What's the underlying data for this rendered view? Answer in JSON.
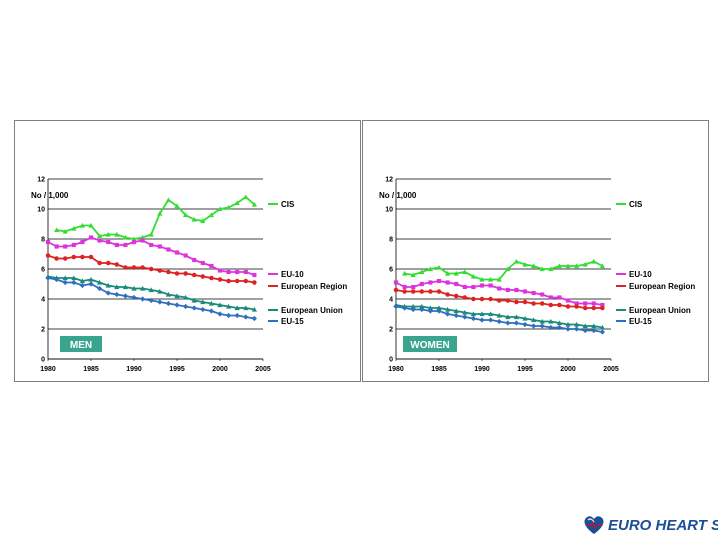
{
  "chart_data": [
    {
      "type": "line",
      "label_box": "MEN",
      "ylabel": "No / 1,000",
      "ylim": [
        0,
        12
      ],
      "yticks": [
        "0",
        "2",
        "4",
        "6",
        "8",
        "10",
        "12"
      ],
      "xlim": [
        1980,
        2005
      ],
      "xticks": [
        "1980",
        "1985",
        "1990",
        "1995",
        "2000",
        "2005"
      ],
      "grid": true,
      "legend_position": "right",
      "series": [
        {
          "name": "CIS",
          "color": "#33dd33",
          "marker": "triangle",
          "x": [
            1981,
            1982,
            1983,
            1984,
            1985,
            1986,
            1987,
            1988,
            1989,
            1990,
            1991,
            1992,
            1993,
            1994,
            1995,
            1996,
            1997,
            1998,
            1999,
            2000,
            2001,
            2002,
            2003,
            2004
          ],
          "y": [
            8.6,
            8.5,
            8.7,
            8.9,
            8.9,
            8.2,
            8.3,
            8.3,
            8.1,
            8.0,
            8.1,
            8.3,
            9.7,
            10.6,
            10.2,
            9.6,
            9.3,
            9.2,
            9.6,
            10.0,
            10.1,
            10.4,
            10.8,
            10.3
          ]
        },
        {
          "name": "EU-10",
          "color": "#dd33dd",
          "marker": "square",
          "x": [
            1980,
            1981,
            1982,
            1983,
            1984,
            1985,
            1986,
            1987,
            1988,
            1989,
            1990,
            1991,
            1992,
            1993,
            1994,
            1995,
            1996,
            1997,
            1998,
            1999,
            2000,
            2001,
            2002,
            2003,
            2004
          ],
          "y": [
            7.8,
            7.5,
            7.5,
            7.6,
            7.8,
            8.1,
            7.9,
            7.8,
            7.6,
            7.6,
            7.8,
            7.9,
            7.6,
            7.5,
            7.3,
            7.1,
            6.9,
            6.6,
            6.4,
            6.2,
            5.9,
            5.8,
            5.8,
            5.8,
            5.6
          ]
        },
        {
          "name": "European Region",
          "color": "#dd2222",
          "marker": "circle",
          "x": [
            1980,
            1981,
            1982,
            1983,
            1984,
            1985,
            1986,
            1987,
            1988,
            1989,
            1990,
            1991,
            1992,
            1993,
            1994,
            1995,
            1996,
            1997,
            1998,
            1999,
            2000,
            2001,
            2002,
            2003,
            2004
          ],
          "y": [
            6.9,
            6.7,
            6.7,
            6.8,
            6.8,
            6.8,
            6.4,
            6.4,
            6.3,
            6.1,
            6.1,
            6.1,
            6.0,
            5.9,
            5.8,
            5.7,
            5.7,
            5.6,
            5.5,
            5.4,
            5.3,
            5.2,
            5.2,
            5.2,
            5.1
          ]
        },
        {
          "name": "European Union",
          "color": "#1a8a7a",
          "marker": "triangle",
          "x": [
            1980,
            1981,
            1982,
            1983,
            1984,
            1985,
            1986,
            1987,
            1988,
            1989,
            1990,
            1991,
            1992,
            1993,
            1994,
            1995,
            1996,
            1997,
            1998,
            1999,
            2000,
            2001,
            2002,
            2003,
            2004
          ],
          "y": [
            5.5,
            5.4,
            5.4,
            5.4,
            5.2,
            5.3,
            5.1,
            4.9,
            4.8,
            4.8,
            4.7,
            4.7,
            4.6,
            4.5,
            4.3,
            4.2,
            4.1,
            3.9,
            3.8,
            3.7,
            3.6,
            3.5,
            3.4,
            3.4,
            3.3
          ]
        },
        {
          "name": "EU-15",
          "color": "#2e6fbf",
          "marker": "diamond",
          "x": [
            1980,
            1981,
            1982,
            1983,
            1984,
            1985,
            1986,
            1987,
            1988,
            1989,
            1990,
            1991,
            1992,
            1993,
            1994,
            1995,
            1996,
            1997,
            1998,
            1999,
            2000,
            2001,
            2002,
            2003,
            2004
          ],
          "y": [
            5.4,
            5.3,
            5.1,
            5.1,
            4.9,
            5.0,
            4.7,
            4.4,
            4.3,
            4.2,
            4.1,
            4.0,
            3.9,
            3.8,
            3.7,
            3.6,
            3.5,
            3.4,
            3.3,
            3.2,
            3.0,
            2.9,
            2.9,
            2.8,
            2.7
          ]
        }
      ]
    },
    {
      "type": "line",
      "label_box": "WOMEN",
      "ylabel": "No / 1,000",
      "ylim": [
        0,
        12
      ],
      "yticks": [
        "0",
        "2",
        "4",
        "6",
        "8",
        "10",
        "12"
      ],
      "xlim": [
        1980,
        2005
      ],
      "xticks": [
        "1980",
        "1985",
        "1990",
        "1995",
        "2000",
        "2005"
      ],
      "grid": true,
      "legend_position": "right",
      "series": [
        {
          "name": "CIS",
          "color": "#33dd33",
          "marker": "triangle",
          "x": [
            1981,
            1982,
            1983,
            1984,
            1985,
            1986,
            1987,
            1988,
            1989,
            1990,
            1991,
            1992,
            1993,
            1994,
            1995,
            1996,
            1997,
            1998,
            1999,
            2000,
            2001,
            2002,
            2003,
            2004
          ],
          "y": [
            5.7,
            5.6,
            5.8,
            6.0,
            6.1,
            5.7,
            5.7,
            5.8,
            5.5,
            5.3,
            5.3,
            5.3,
            6.0,
            6.5,
            6.3,
            6.2,
            6.0,
            6.0,
            6.2,
            6.2,
            6.2,
            6.3,
            6.5,
            6.2
          ]
        },
        {
          "name": "EU-10",
          "color": "#dd33dd",
          "marker": "square",
          "x": [
            1980,
            1981,
            1982,
            1983,
            1984,
            1985,
            1986,
            1987,
            1988,
            1989,
            1990,
            1991,
            1992,
            1993,
            1994,
            1995,
            1996,
            1997,
            1998,
            1999,
            2000,
            2001,
            2002,
            2003,
            2004
          ],
          "y": [
            5.1,
            4.8,
            4.8,
            5.0,
            5.1,
            5.2,
            5.1,
            5.0,
            4.8,
            4.8,
            4.9,
            4.9,
            4.7,
            4.6,
            4.6,
            4.5,
            4.4,
            4.3,
            4.1,
            4.1,
            3.9,
            3.7,
            3.7,
            3.7,
            3.6
          ]
        },
        {
          "name": "European Region",
          "color": "#dd2222",
          "marker": "circle",
          "x": [
            1980,
            1981,
            1982,
            1983,
            1984,
            1985,
            1986,
            1987,
            1988,
            1989,
            1990,
            1991,
            1992,
            1993,
            1994,
            1995,
            1996,
            1997,
            1998,
            1999,
            2000,
            2001,
            2002,
            2003,
            2004
          ],
          "y": [
            4.6,
            4.5,
            4.5,
            4.5,
            4.5,
            4.5,
            4.3,
            4.2,
            4.1,
            4.0,
            4.0,
            4.0,
            3.9,
            3.9,
            3.8,
            3.8,
            3.7,
            3.7,
            3.6,
            3.6,
            3.5,
            3.5,
            3.4,
            3.4,
            3.4
          ]
        },
        {
          "name": "European Union",
          "color": "#1a8a7a",
          "marker": "triangle",
          "x": [
            1980,
            1981,
            1982,
            1983,
            1984,
            1985,
            1986,
            1987,
            1988,
            1989,
            1990,
            1991,
            1992,
            1993,
            1994,
            1995,
            1996,
            1997,
            1998,
            1999,
            2000,
            2001,
            2002,
            2003,
            2004
          ],
          "y": [
            3.6,
            3.5,
            3.5,
            3.5,
            3.4,
            3.4,
            3.3,
            3.2,
            3.1,
            3.0,
            3.0,
            3.0,
            2.9,
            2.8,
            2.8,
            2.7,
            2.6,
            2.5,
            2.5,
            2.4,
            2.3,
            2.3,
            2.2,
            2.2,
            2.1
          ]
        },
        {
          "name": "EU-15",
          "color": "#2e6fbf",
          "marker": "diamond",
          "x": [
            1980,
            1981,
            1982,
            1983,
            1984,
            1985,
            1986,
            1987,
            1988,
            1989,
            1990,
            1991,
            1992,
            1993,
            1994,
            1995,
            1996,
            1997,
            1998,
            1999,
            2000,
            2001,
            2002,
            2003,
            2004
          ],
          "y": [
            3.5,
            3.4,
            3.3,
            3.3,
            3.2,
            3.2,
            3.0,
            2.9,
            2.8,
            2.7,
            2.6,
            2.6,
            2.5,
            2.4,
            2.4,
            2.3,
            2.2,
            2.2,
            2.1,
            2.1,
            2.0,
            2.0,
            1.9,
            1.9,
            1.8
          ]
        }
      ]
    }
  ],
  "logo": {
    "text": "EURO HEART SURVEY",
    "color": "#1a4f93",
    "accent": "#c8102e"
  }
}
